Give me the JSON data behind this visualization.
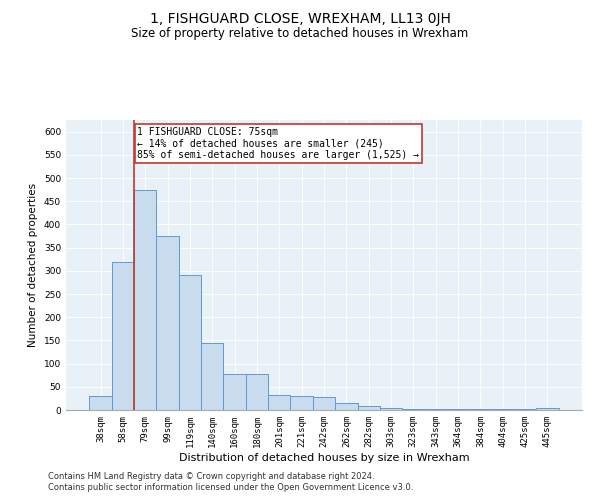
{
  "title": "1, FISHGUARD CLOSE, WREXHAM, LL13 0JH",
  "subtitle": "Size of property relative to detached houses in Wrexham",
  "xlabel": "Distribution of detached houses by size in Wrexham",
  "ylabel": "Number of detached properties",
  "categories": [
    "38sqm",
    "58sqm",
    "79sqm",
    "99sqm",
    "119sqm",
    "140sqm",
    "160sqm",
    "180sqm",
    "201sqm",
    "221sqm",
    "242sqm",
    "262sqm",
    "282sqm",
    "303sqm",
    "323sqm",
    "343sqm",
    "364sqm",
    "384sqm",
    "404sqm",
    "425sqm",
    "445sqm"
  ],
  "values": [
    30,
    320,
    475,
    375,
    290,
    145,
    77,
    77,
    33,
    30,
    27,
    15,
    8,
    5,
    3,
    3,
    3,
    3,
    3,
    3,
    5
  ],
  "bar_color": "#c9dced",
  "bar_edge_color": "#5b9bd5",
  "bar_edge_width": 0.7,
  "marker_line_color": "#c0392b",
  "annotation_text": "1 FISHGUARD CLOSE: 75sqm\n← 14% of detached houses are smaller (245)\n85% of semi-detached houses are larger (1,525) →",
  "annotation_box_color": "#ffffff",
  "annotation_box_edge": "#c0392b",
  "ylim": [
    0,
    625
  ],
  "yticks": [
    0,
    50,
    100,
    150,
    200,
    250,
    300,
    350,
    400,
    450,
    500,
    550,
    600
  ],
  "footnote1": "Contains HM Land Registry data © Crown copyright and database right 2024.",
  "footnote2": "Contains public sector information licensed under the Open Government Licence v3.0.",
  "bg_color": "#e8f0f8",
  "fig_bg_color": "#ffffff",
  "title_fontsize": 10,
  "subtitle_fontsize": 8.5,
  "xlabel_fontsize": 8,
  "ylabel_fontsize": 7.5,
  "tick_fontsize": 6.5,
  "annotation_fontsize": 7,
  "footnote_fontsize": 6
}
